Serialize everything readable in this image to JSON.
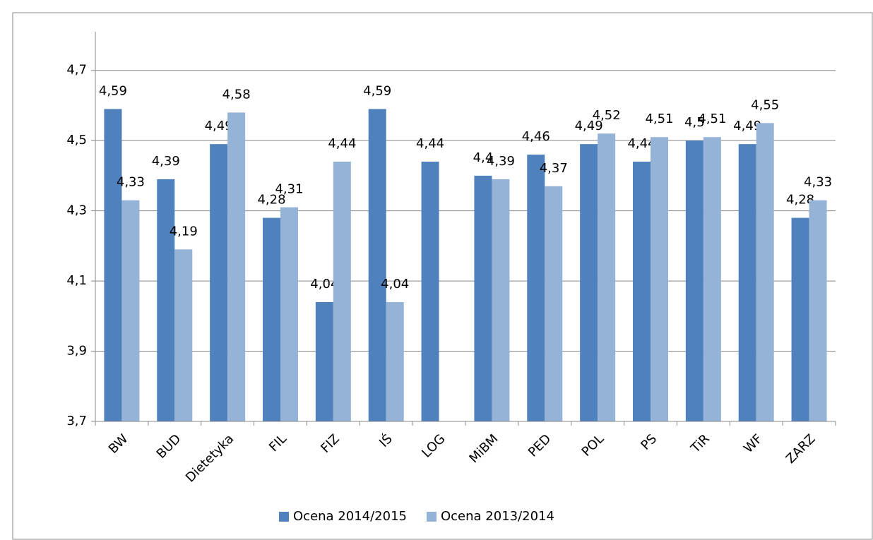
{
  "chart_data": {
    "type": "bar",
    "categories": [
      "BW",
      "BUD",
      "Dietetyka",
      "FIL",
      "FIZ",
      "IŚ",
      "LOG",
      "MiBM",
      "PED",
      "POL",
      "PS",
      "TiR",
      "WF",
      "ZARZ"
    ],
    "series": [
      {
        "name": "Ocena 2014/2015",
        "color": "#4f81bd",
        "values": [
          4.59,
          4.39,
          4.49,
          4.28,
          4.04,
          4.59,
          4.44,
          4.4,
          4.46,
          4.49,
          4.44,
          4.5,
          4.49,
          4.28
        ],
        "value_labels": [
          "4,59",
          "4,39",
          "4,49",
          "4,28",
          "4,04",
          "4,59",
          "4,44",
          "4,4",
          "4,46",
          "4,49",
          "4,44",
          "4,5",
          "4,49",
          "4,28"
        ]
      },
      {
        "name": "Ocena 2013/2014",
        "color": "#95b3d7",
        "values": [
          4.33,
          4.19,
          4.58,
          4.31,
          4.44,
          4.04,
          null,
          4.39,
          4.37,
          4.52,
          4.51,
          4.51,
          4.55,
          4.33
        ],
        "value_labels": [
          "4,33",
          "4,19",
          "4,58",
          "4,31",
          "4,44",
          "4,04",
          null,
          "4,39",
          "4,37",
          "4,52",
          "4,51",
          "4,51",
          "4,55",
          "4,33"
        ]
      }
    ],
    "ylim": [
      3.7,
      4.8
    ],
    "yticks": [
      {
        "value": 3.7,
        "label": "3,7"
      },
      {
        "value": 3.9,
        "label": "3,9"
      },
      {
        "value": 4.1,
        "label": "4,1"
      },
      {
        "value": 4.3,
        "label": "4,3"
      },
      {
        "value": 4.5,
        "label": "4,5"
      },
      {
        "value": 4.7,
        "label": "4,7"
      }
    ],
    "grid": true,
    "legend": "bottom"
  }
}
